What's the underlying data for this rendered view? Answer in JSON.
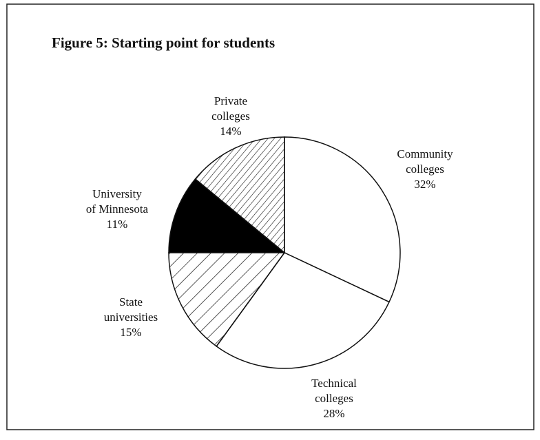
{
  "chart_data": {
    "type": "pie",
    "title": "Figure 5: Starting point for students",
    "categories": [
      [
        "Community",
        "colleges"
      ],
      [
        "Technical",
        "colleges"
      ],
      [
        "State",
        "universities"
      ],
      [
        "University",
        "of Minnesota"
      ],
      [
        "Private",
        "colleges"
      ]
    ],
    "values": [
      32,
      28,
      15,
      11,
      14
    ],
    "value_labels": [
      "32%",
      "28%",
      "15%",
      "11%",
      "14%"
    ],
    "colors": [
      "#ffffff",
      "#ffffff",
      "#ffffff",
      "#000000",
      "#ffffff"
    ],
    "hatch": [
      "none",
      "none",
      "wide",
      "none",
      "fine"
    ],
    "start": "top",
    "direction": "clockwise"
  }
}
